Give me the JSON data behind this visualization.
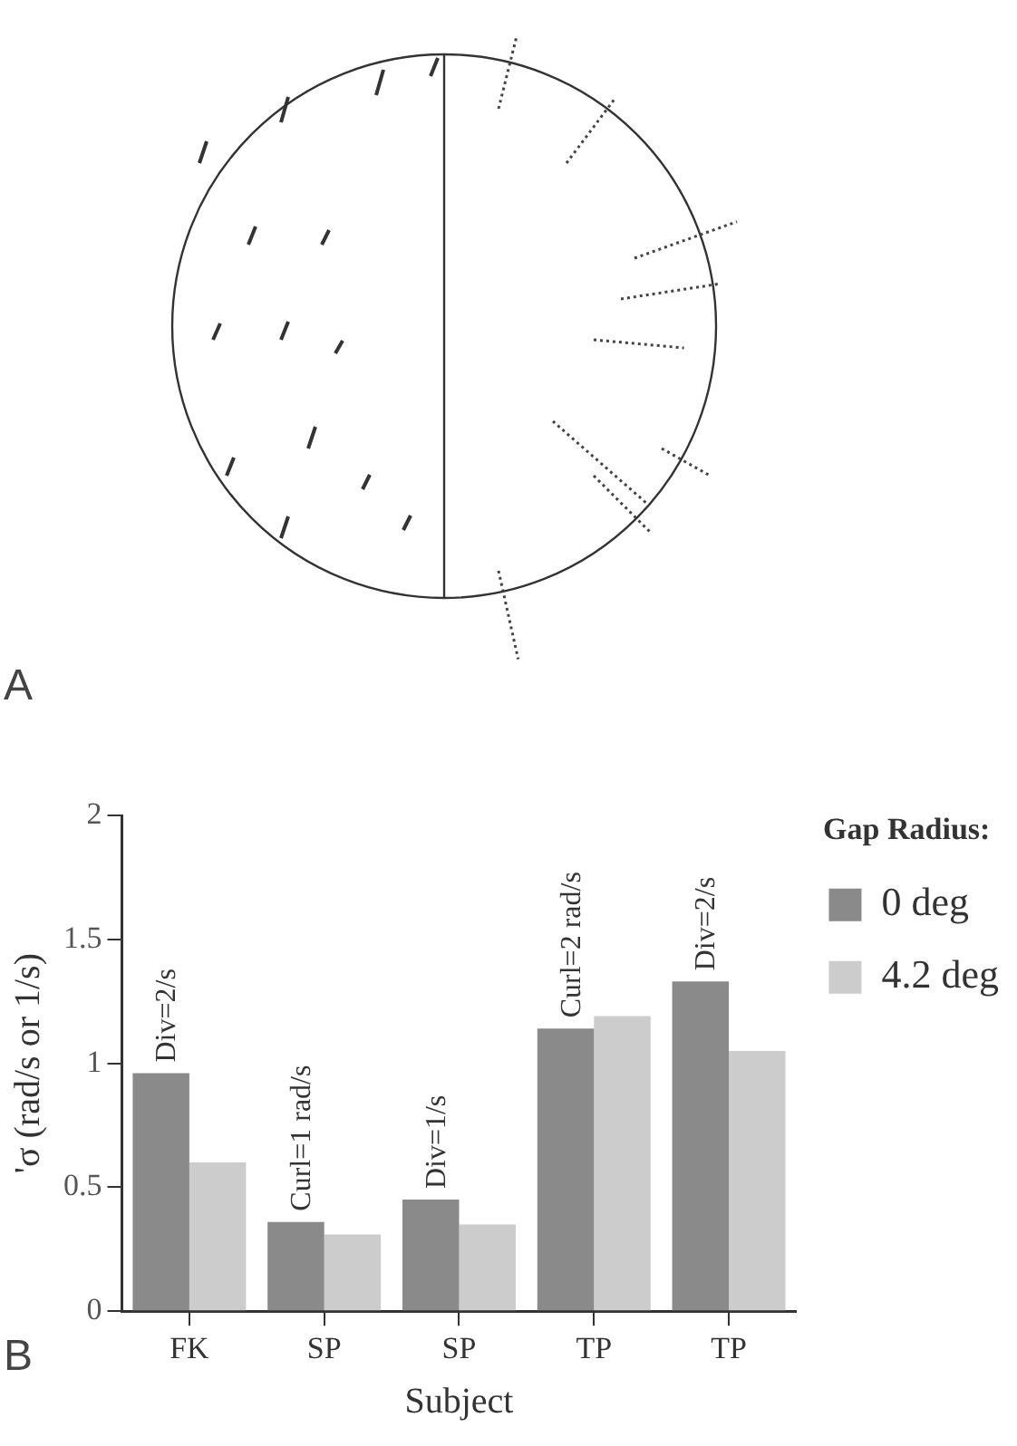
{
  "chart_data": {
    "type": "bar",
    "xlabel": "Subject",
    "ylabel": "'σ (rad/s or 1/s)",
    "legend_title": "Gap Radius:",
    "categories": [
      "FK",
      "SP",
      "SP",
      "TP",
      "TP"
    ],
    "series": [
      {
        "name": "0 deg",
        "color": "#8a8a8a",
        "values": [
          0.96,
          0.36,
          0.45,
          1.14,
          1.33
        ]
      },
      {
        "name": "4.2 deg",
        "color": "#cccccc",
        "values": [
          0.6,
          0.31,
          0.35,
          1.19,
          1.05
        ]
      }
    ],
    "ylim": [
      0,
      2
    ],
    "yticks": [
      0,
      0.5,
      1,
      1.5,
      2
    ],
    "grid": false,
    "legend": "right",
    "annotations": [
      "A",
      "B",
      {
        "text": "Div=2/s",
        "y": 0.96
      },
      {
        "text": "Curl=1 rad/s",
        "y": 0.36
      },
      {
        "text": "Div=1/s",
        "y": 0.45
      },
      {
        "text": "Curl=2 rad/s",
        "y": 1.14
      },
      {
        "text": "Div=2/s",
        "y": 1.33
      }
    ]
  }
}
